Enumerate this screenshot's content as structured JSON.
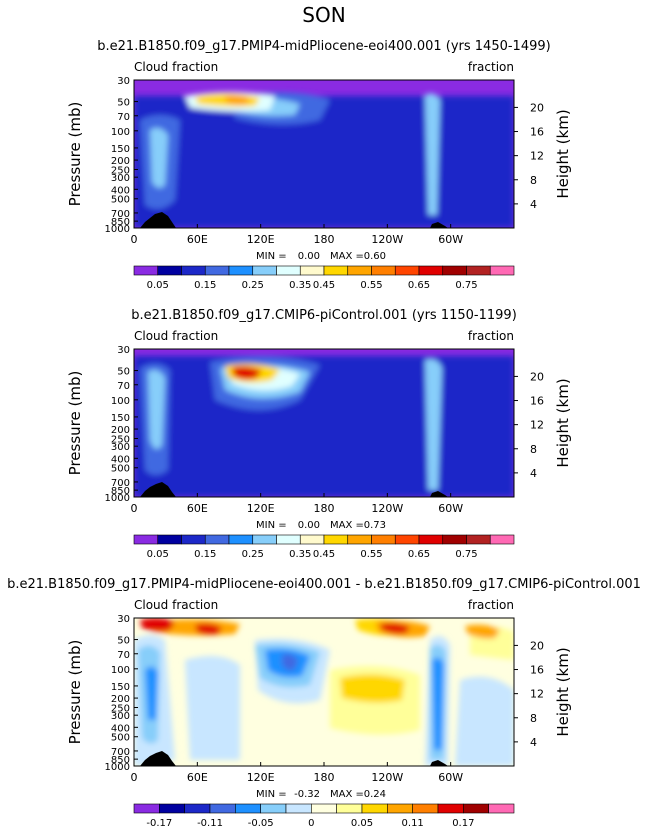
{
  "figure": {
    "title": "SON"
  },
  "chart_data": [
    {
      "type": "heatmap",
      "title": "b.e21.B1850.f09_g17.PMIP4-midPliocene-eoi400.001 (yrs 1450-1499)",
      "left_label": "Cloud fraction",
      "right_label": "fraction",
      "xlabel": "",
      "ylabel": "Pressure (mb)",
      "ylabel_right": "Height (km)",
      "x_ticks": [
        "0",
        "60E",
        "120E",
        "180",
        "120W",
        "60W"
      ],
      "y_ticks": [
        "30",
        "50",
        "70",
        "100",
        "150",
        "200",
        "250",
        "300",
        "400",
        "500",
        "700",
        "850",
        "1000"
      ],
      "height_ticks": [
        "20",
        "16",
        "12",
        "8",
        "4"
      ],
      "min_label": "MIN =",
      "min_value": "0.00",
      "max_label": "MAX =",
      "max_value": "0.60",
      "colorbar_labels": [
        "0.05",
        "0.15",
        "0.25",
        "0.35",
        "0.45",
        "0.55",
        "0.65",
        "0.75"
      ],
      "colorbar_colors": [
        "#8a2be2",
        "#0000a0",
        "#1c28c8",
        "#4169e1",
        "#1e90ff",
        "#87cefa",
        "#e0ffff",
        "#fffacd",
        "#ffd700",
        "#ffa500",
        "#ff7f00",
        "#ff4500",
        "#e00000",
        "#a00000",
        "#b22222",
        "#ff69b4"
      ]
    },
    {
      "type": "heatmap",
      "title": "b.e21.B1850.f09_g17.CMIP6-piControl.001 (yrs 1150-1199)",
      "left_label": "Cloud fraction",
      "right_label": "fraction",
      "xlabel": "",
      "ylabel": "Pressure (mb)",
      "ylabel_right": "Height (km)",
      "x_ticks": [
        "0",
        "60E",
        "120E",
        "180",
        "120W",
        "60W"
      ],
      "y_ticks": [
        "30",
        "50",
        "70",
        "100",
        "150",
        "200",
        "250",
        "300",
        "400",
        "500",
        "700",
        "850",
        "1000"
      ],
      "height_ticks": [
        "20",
        "16",
        "12",
        "8",
        "4"
      ],
      "min_label": "MIN =",
      "min_value": "0.00",
      "max_label": "MAX =",
      "max_value": "0.73",
      "colorbar_labels": [
        "0.05",
        "0.15",
        "0.25",
        "0.35",
        "0.45",
        "0.55",
        "0.65",
        "0.75"
      ],
      "colorbar_colors": [
        "#8a2be2",
        "#0000a0",
        "#1c28c8",
        "#4169e1",
        "#1e90ff",
        "#87cefa",
        "#e0ffff",
        "#fffacd",
        "#ffd700",
        "#ffa500",
        "#ff7f00",
        "#ff4500",
        "#e00000",
        "#a00000",
        "#b22222",
        "#ff69b4"
      ]
    },
    {
      "type": "heatmap",
      "title": "b.e21.B1850.f09_g17.PMIP4-midPliocene-eoi400.001 - b.e21.B1850.f09_g17.CMIP6-piControl.001",
      "left_label": "Cloud fraction",
      "right_label": "fraction",
      "xlabel": "",
      "ylabel": "Pressure (mb)",
      "ylabel_right": "Height (km)",
      "x_ticks": [
        "0",
        "60E",
        "120E",
        "180",
        "120W",
        "60W"
      ],
      "y_ticks": [
        "30",
        "50",
        "70",
        "100",
        "150",
        "200",
        "250",
        "300",
        "400",
        "500",
        "700",
        "850",
        "1000"
      ],
      "height_ticks": [
        "20",
        "16",
        "12",
        "8",
        "4"
      ],
      "min_label": "MIN =",
      "min_value": "-0.32",
      "max_label": "MAX =",
      "max_value": "0.24",
      "colorbar_labels": [
        "-0.17",
        "-0.11",
        "-0.05",
        "0",
        "0.05",
        "0.11",
        "0.17"
      ],
      "colorbar_colors": [
        "#8a2be2",
        "#0000a0",
        "#1c28c8",
        "#4169e1",
        "#1e90ff",
        "#87cefa",
        "#c8e6ff",
        "#ffffe0",
        "#ffff99",
        "#ffd700",
        "#ffa500",
        "#ff7f00",
        "#e00000",
        "#a00000",
        "#ff69b4"
      ]
    }
  ]
}
